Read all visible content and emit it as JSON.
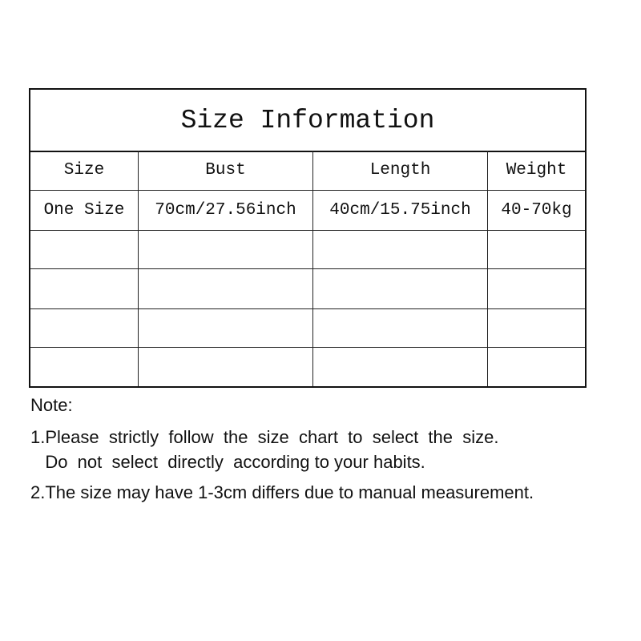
{
  "table": {
    "title": "Size Information",
    "headers": [
      "Size",
      "Bust",
      "Length",
      "Weight"
    ],
    "rows": [
      [
        "One Size",
        "70cm/27.56inch",
        "40cm/15.75inch",
        "40-70kg"
      ],
      [
        "",
        "",
        "",
        ""
      ],
      [
        "",
        "",
        "",
        ""
      ],
      [
        "",
        "",
        "",
        ""
      ],
      [
        "",
        "",
        "",
        ""
      ]
    ]
  },
  "notes": {
    "heading": "Note:",
    "line1": "1.Please  strictly  follow  the  size  chart  to  select  the  size.",
    "line1b": "   Do  not  select  directly  according to your habits.",
    "line2": "2.The size may have 1-3cm differs due to manual measurement."
  }
}
